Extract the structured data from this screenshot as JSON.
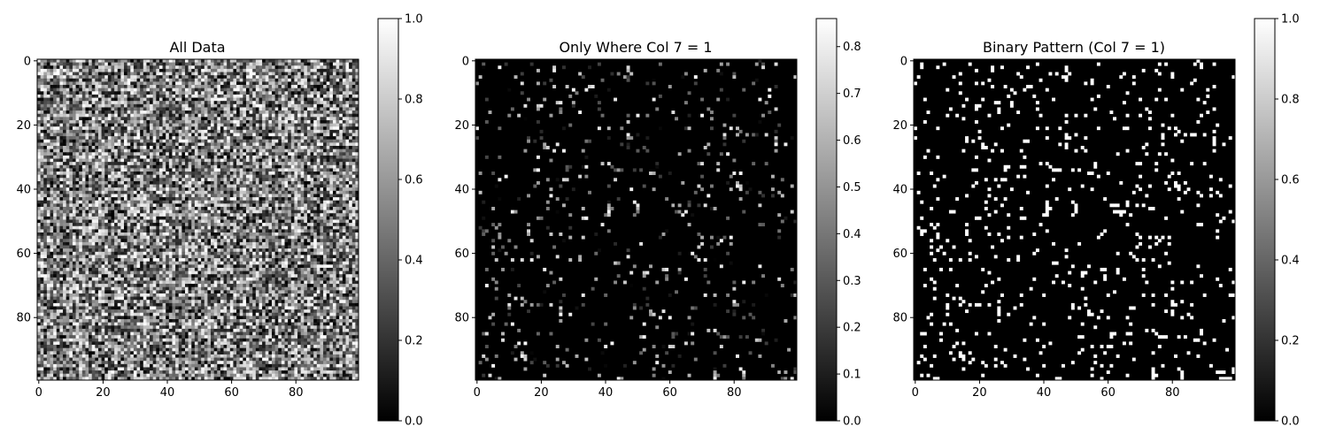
{
  "chart_data": [
    {
      "type": "heatmap",
      "title": "All Data",
      "cmap": "gray",
      "grid": false,
      "rows": 100,
      "cols": 100,
      "content": "random values in [0, 1] across all cells",
      "xlim": [
        0,
        99
      ],
      "ylim": [
        0,
        99
      ],
      "xticks": [
        "0",
        "20",
        "40",
        "60",
        "80"
      ],
      "yticks": [
        "0",
        "20",
        "40",
        "60",
        "80"
      ],
      "colorbar": {
        "range": [
          0.0,
          1.0
        ],
        "ticks": [
          "0.0",
          "0.2",
          "0.4",
          "0.6",
          "0.8",
          "1.0"
        ]
      }
    },
    {
      "type": "heatmap",
      "title": "Only Where Col 7 = 1",
      "cmap": "gray",
      "grid": false,
      "rows": 100,
      "cols": 100,
      "content": "mostly 0; sparse cells (~6%) holding their original value",
      "xlim": [
        0,
        99
      ],
      "ylim": [
        0,
        99
      ],
      "xticks": [
        "0",
        "20",
        "40",
        "60",
        "80"
      ],
      "yticks": [
        "0",
        "20",
        "40",
        "60",
        "80"
      ],
      "colorbar": {
        "range": [
          0.0,
          0.86
        ],
        "ticks": [
          "0.0",
          "0.1",
          "0.2",
          "0.3",
          "0.4",
          "0.5",
          "0.6",
          "0.7",
          "0.8"
        ]
      }
    },
    {
      "type": "heatmap",
      "title": "Binary Pattern (Col 7 = 1)",
      "cmap": "gray",
      "grid": false,
      "rows": 100,
      "cols": 100,
      "content": "binary 0/1 mask of the same sparse cells",
      "xlim": [
        0,
        99
      ],
      "ylim": [
        0,
        99
      ],
      "xticks": [
        "0",
        "20",
        "40",
        "60",
        "80"
      ],
      "yticks": [
        "0",
        "20",
        "40",
        "60",
        "80"
      ],
      "colorbar": {
        "range": [
          0.0,
          1.0
        ],
        "ticks": [
          "0.0",
          "0.2",
          "0.4",
          "0.6",
          "0.8",
          "1.0"
        ]
      }
    }
  ]
}
